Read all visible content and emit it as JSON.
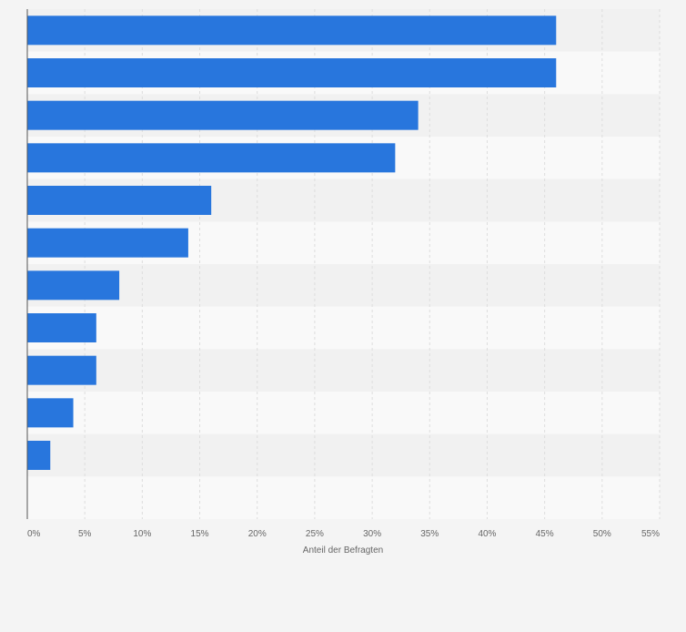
{
  "chart_data": {
    "type": "bar",
    "orientation": "horizontal",
    "categories": [
      "",
      "",
      "",
      "",
      "",
      "",
      "",
      "",
      "",
      "",
      "",
      ""
    ],
    "values": [
      46,
      46,
      34,
      32,
      16,
      14,
      8,
      6,
      6,
      4,
      2,
      0
    ],
    "xlabel": "Anteil der Befragten",
    "xlim": [
      0,
      55
    ],
    "ticks": [
      "0%",
      "5%",
      "10%",
      "15%",
      "20%",
      "25%",
      "30%",
      "35%",
      "40%",
      "45%",
      "50%",
      "55%"
    ],
    "grid": true,
    "colors": {
      "bar": "#2876dd",
      "plot_bg": "#f9f9f9",
      "band_bg": "#f1f1f1",
      "grid": "#dddddd",
      "axis": "#555555",
      "text": "#666666"
    }
  }
}
